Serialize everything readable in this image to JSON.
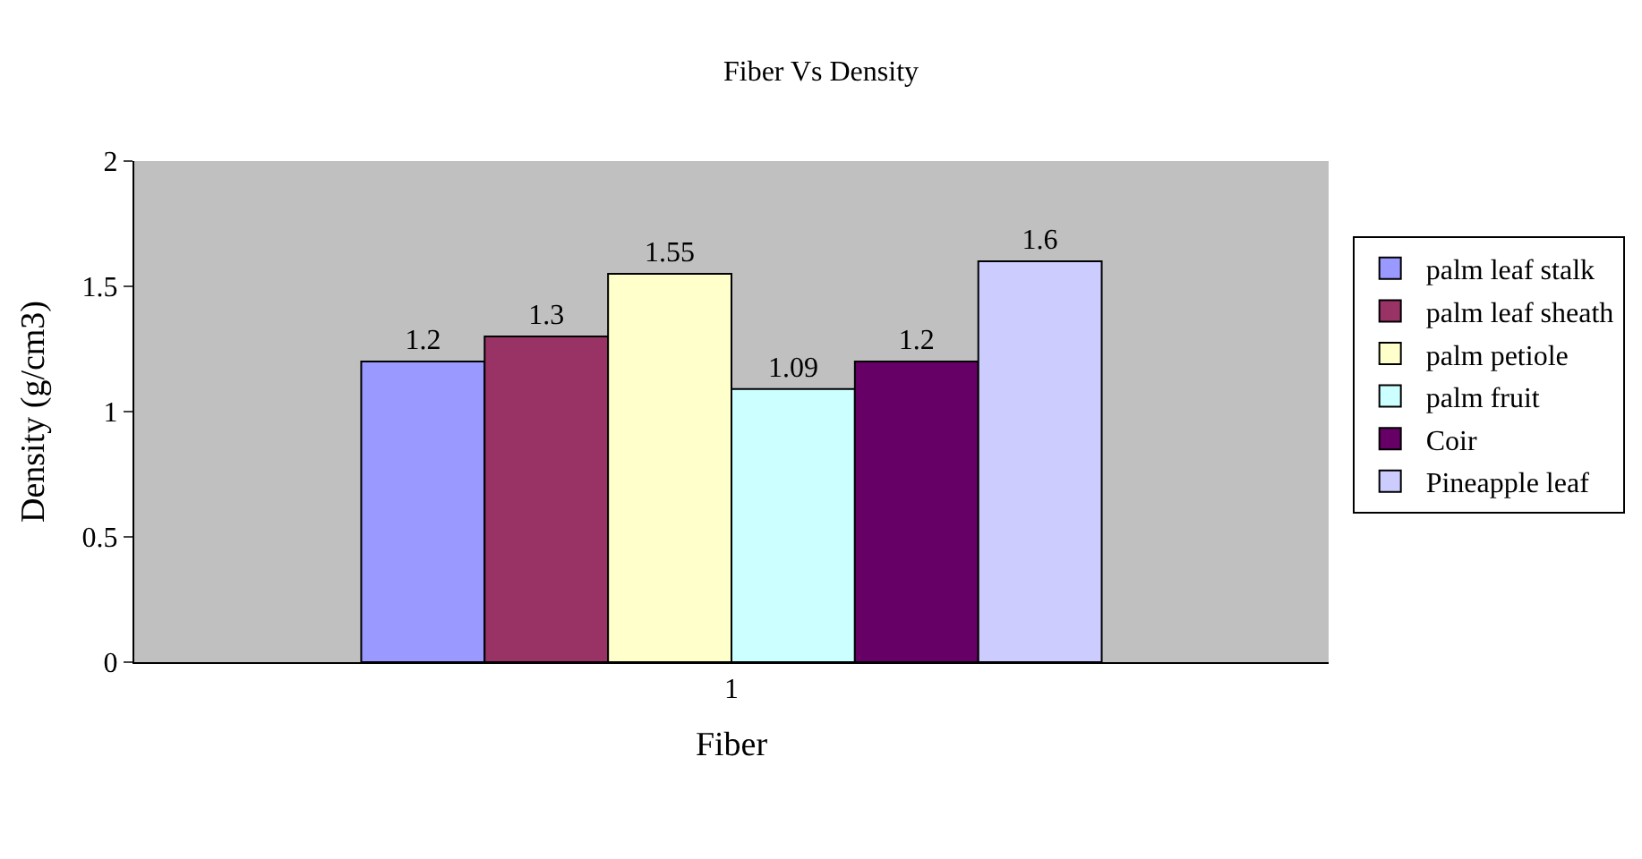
{
  "chart_data": {
    "type": "bar",
    "title": "Fiber Vs Density",
    "xlabel": "Fiber",
    "ylabel": "Density (g/cm3)",
    "categories": [
      "1"
    ],
    "series": [
      {
        "name": "palm leaf stalk",
        "color": "#9999ff",
        "values": [
          1.2
        ]
      },
      {
        "name": "palm leaf sheath",
        "color": "#993366",
        "values": [
          1.3
        ]
      },
      {
        "name": "palm petiole",
        "color": "#ffffcc",
        "values": [
          1.55
        ]
      },
      {
        "name": "palm fruit",
        "color": "#ccffff",
        "values": [
          1.09
        ]
      },
      {
        "name": "Coir",
        "color": "#660066",
        "values": [
          1.2
        ]
      },
      {
        "name": "Pineapple leaf",
        "color": "#ccccff",
        "values": [
          1.6
        ]
      }
    ],
    "ylim": [
      0,
      2
    ],
    "yticks": [
      0,
      0.5,
      1,
      1.5,
      2
    ],
    "grid": false,
    "legend": "right",
    "data_labels": true
  }
}
